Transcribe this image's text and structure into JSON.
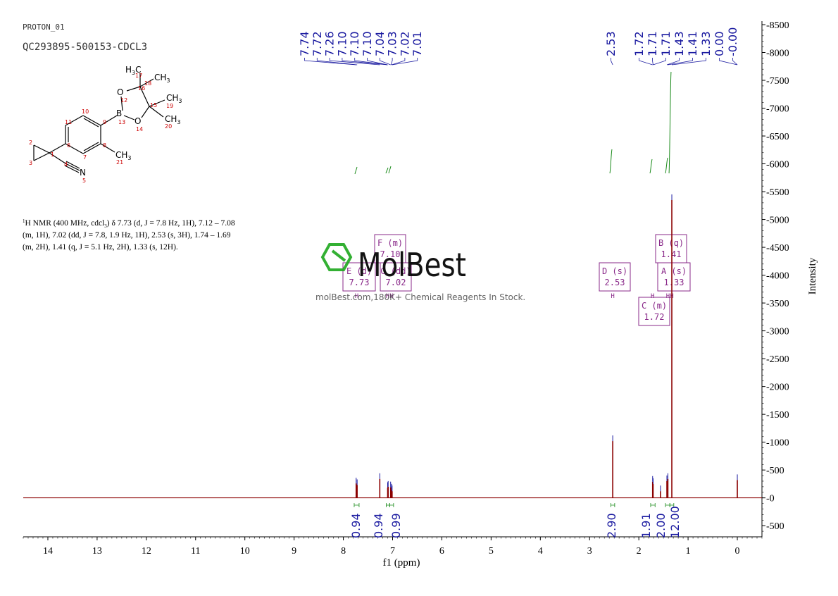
{
  "header": {
    "experiment": "PROTON_01",
    "sample": "QC293895-500153-CDCL3"
  },
  "nmr_text": {
    "line1_pre": "H NMR (400 MHz, cdcl",
    "line1_sup": "1",
    "line1_sub": "3",
    "line1_post": ") δ 7.73 (d, J = 7.8 Hz, 1H), 7.12 – 7.08",
    "line2": "(m, 1H), 7.02 (dd, J = 7.8, 1.9 Hz, 1H), 2.53 (s, 3H), 1.74 – 1.69",
    "line3": "(m, 2H), 1.41 (q, J = 5.1 Hz, 2H), 1.33 (s, 12H)."
  },
  "watermark": {
    "brand": "MolBest",
    "tagline": "molBest.com,180K+ Chemical Reagents In Stock."
  },
  "structure": {
    "atoms": [
      {
        "id": "a1",
        "label": "1"
      },
      {
        "id": "a2",
        "label": "2"
      },
      {
        "id": "a3",
        "label": "3"
      },
      {
        "id": "a4",
        "label": "4"
      },
      {
        "id": "a5",
        "label": "5"
      },
      {
        "id": "a6",
        "label": "6"
      },
      {
        "id": "a7",
        "label": "7"
      },
      {
        "id": "a8",
        "label": "8"
      },
      {
        "id": "a9",
        "label": "9"
      },
      {
        "id": "a10",
        "label": "10"
      },
      {
        "id": "a11",
        "label": "11"
      },
      {
        "id": "a12",
        "label": "12"
      },
      {
        "id": "a13",
        "label": "13"
      },
      {
        "id": "a14",
        "label": "14"
      },
      {
        "id": "a15",
        "label": "15"
      },
      {
        "id": "a16",
        "label": "16"
      },
      {
        "id": "a17",
        "label": "17"
      },
      {
        "id": "a18",
        "label": "18"
      },
      {
        "id": "a19",
        "label": "19"
      },
      {
        "id": "a20",
        "label": "20"
      },
      {
        "id": "a21",
        "label": "21"
      }
    ],
    "labels": {
      "B": "B",
      "O": "O",
      "N": "N",
      "CH3": "CH",
      "H3C": "H",
      "three": "3",
      "C": "C"
    }
  },
  "chart_data": {
    "type": "line",
    "xlabel": "f1 (ppm)",
    "ylabel": "Intensity",
    "xlim": [
      14.5,
      -0.5
    ],
    "ylim": [
      -700,
      8500
    ],
    "x_ticks": [
      "14",
      "13",
      "12",
      "11",
      "10",
      "9",
      "8",
      "7",
      "6",
      "5",
      "4",
      "3",
      "2",
      "1",
      "0"
    ],
    "x_tick_values": [
      14,
      13,
      12,
      11,
      10,
      9,
      8,
      7,
      6,
      5,
      4,
      3,
      2,
      1,
      0
    ],
    "y_ticks": [
      "8500",
      "8000",
      "7500",
      "7000",
      "6500",
      "6000",
      "5500",
      "5000",
      "4500",
      "4000",
      "3500",
      "3000",
      "2500",
      "2000",
      "1500",
      "1000",
      "500",
      "0",
      "-500"
    ],
    "y_tick_values": [
      8500,
      8000,
      7500,
      7000,
      6500,
      6000,
      5500,
      5000,
      4500,
      4000,
      3500,
      3000,
      2500,
      2000,
      1500,
      1000,
      500,
      0,
      -500
    ],
    "peaks": [
      {
        "ppm": 7.74,
        "height": 260
      },
      {
        "ppm": 7.72,
        "height": 230
      },
      {
        "ppm": 7.26,
        "height": 340
      },
      {
        "ppm": 7.1,
        "height": 180
      },
      {
        "ppm": 7.09,
        "height": 200
      },
      {
        "ppm": 7.04,
        "height": 190
      },
      {
        "ppm": 7.02,
        "height": 150
      },
      {
        "ppm": 7.01,
        "height": 120
      },
      {
        "ppm": 2.53,
        "height": 1020
      },
      {
        "ppm": 1.72,
        "height": 290
      },
      {
        "ppm": 1.71,
        "height": 250
      },
      {
        "ppm": 1.56,
        "height": 120
      },
      {
        "ppm": 1.43,
        "height": 300
      },
      {
        "ppm": 1.41,
        "height": 340
      },
      {
        "ppm": 1.33,
        "height": 5350
      },
      {
        "ppm": 0.0,
        "height": 320
      }
    ],
    "peak_labels": [
      "7.74",
      "7.72",
      "7.26",
      "7.10",
      "7.10",
      "7.10",
      "7.04",
      "7.03",
      "7.02",
      "7.01",
      "2.53",
      "1.72",
      "1.71",
      "1.71",
      "1.43",
      "1.41",
      "1.33",
      "0.00",
      "-0.00"
    ],
    "integrals": [
      {
        "from": 7.78,
        "to": 7.68,
        "value": "0.94"
      },
      {
        "from": 7.13,
        "to": 7.06,
        "value": "0.94"
      },
      {
        "from": 7.06,
        "to": 6.98,
        "value": "0.99"
      },
      {
        "from": 2.57,
        "to": 2.49,
        "value": "2.90"
      },
      {
        "from": 1.76,
        "to": 1.67,
        "value": "1.91"
      },
      {
        "from": 1.46,
        "to": 1.37,
        "value": "2.00"
      },
      {
        "from": 1.37,
        "to": 1.29,
        "value": "12.00"
      }
    ],
    "multiplets": [
      {
        "letter": "E",
        "mult": "d",
        "shift": "7.73"
      },
      {
        "letter": "F",
        "mult": "m",
        "shift": "7.10"
      },
      {
        "letter": "G",
        "mult": "dd",
        "shift": "7.02"
      },
      {
        "letter": "D",
        "mult": "s",
        "shift": "2.53"
      },
      {
        "letter": "C",
        "mult": "m",
        "shift": "1.72"
      },
      {
        "letter": "B",
        "mult": "q",
        "shift": "1.41"
      },
      {
        "letter": "A",
        "mult": "s",
        "shift": "1.33"
      }
    ],
    "colors": {
      "spectrum": "#8b0000",
      "peak_label": "#1a1aa0",
      "integral": "#1a8a1a",
      "integral_value": "#1a1aa0",
      "multiplet": "#8a2a8a",
      "atom_number": "#cc0000",
      "watermark": "#22aa22"
    }
  }
}
